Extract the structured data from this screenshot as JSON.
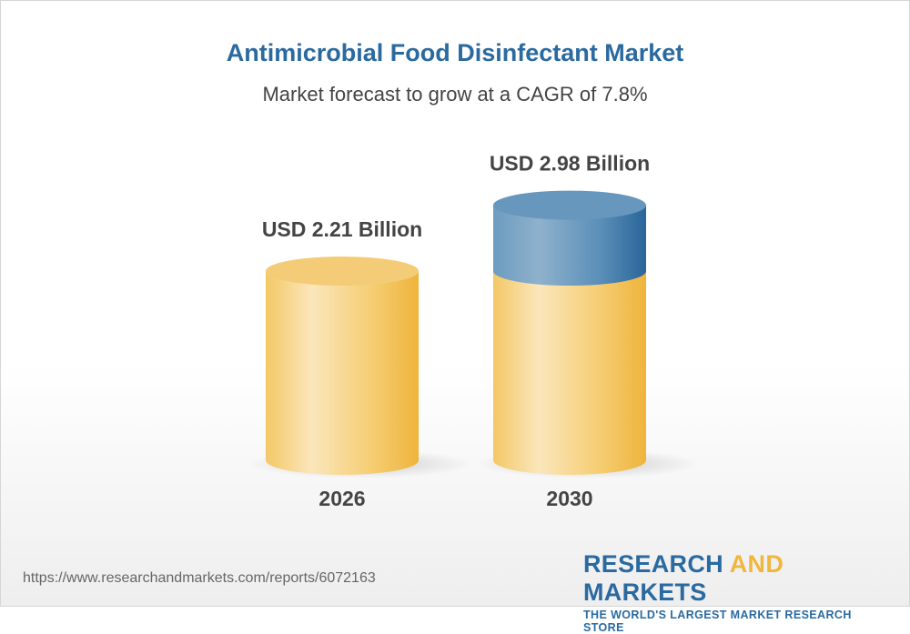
{
  "title": "Antimicrobial Food Disinfectant Market",
  "subtitle": "Market forecast to grow at a CAGR of 7.8%",
  "chart_data": {
    "type": "bar",
    "style": "3d-cylinder",
    "categories": [
      "2026",
      "2030"
    ],
    "values": [
      2.21,
      2.98
    ],
    "data_labels": [
      "USD 2.21 Billion",
      "USD 2.98 Billion"
    ],
    "unit": "USD Billion",
    "cagr": "7.8%",
    "colors": {
      "base": "#f3c35a",
      "growth": "#2f6fa3"
    },
    "grid": false,
    "legend": "none"
  },
  "footer": {
    "url": "https://www.researchandmarkets.com/reports/6072163",
    "logo_part1": "RESEARCH ",
    "logo_part2": "AND",
    "logo_part3": " MARKETS",
    "tagline": "THE WORLD'S LARGEST MARKET RESEARCH STORE"
  }
}
